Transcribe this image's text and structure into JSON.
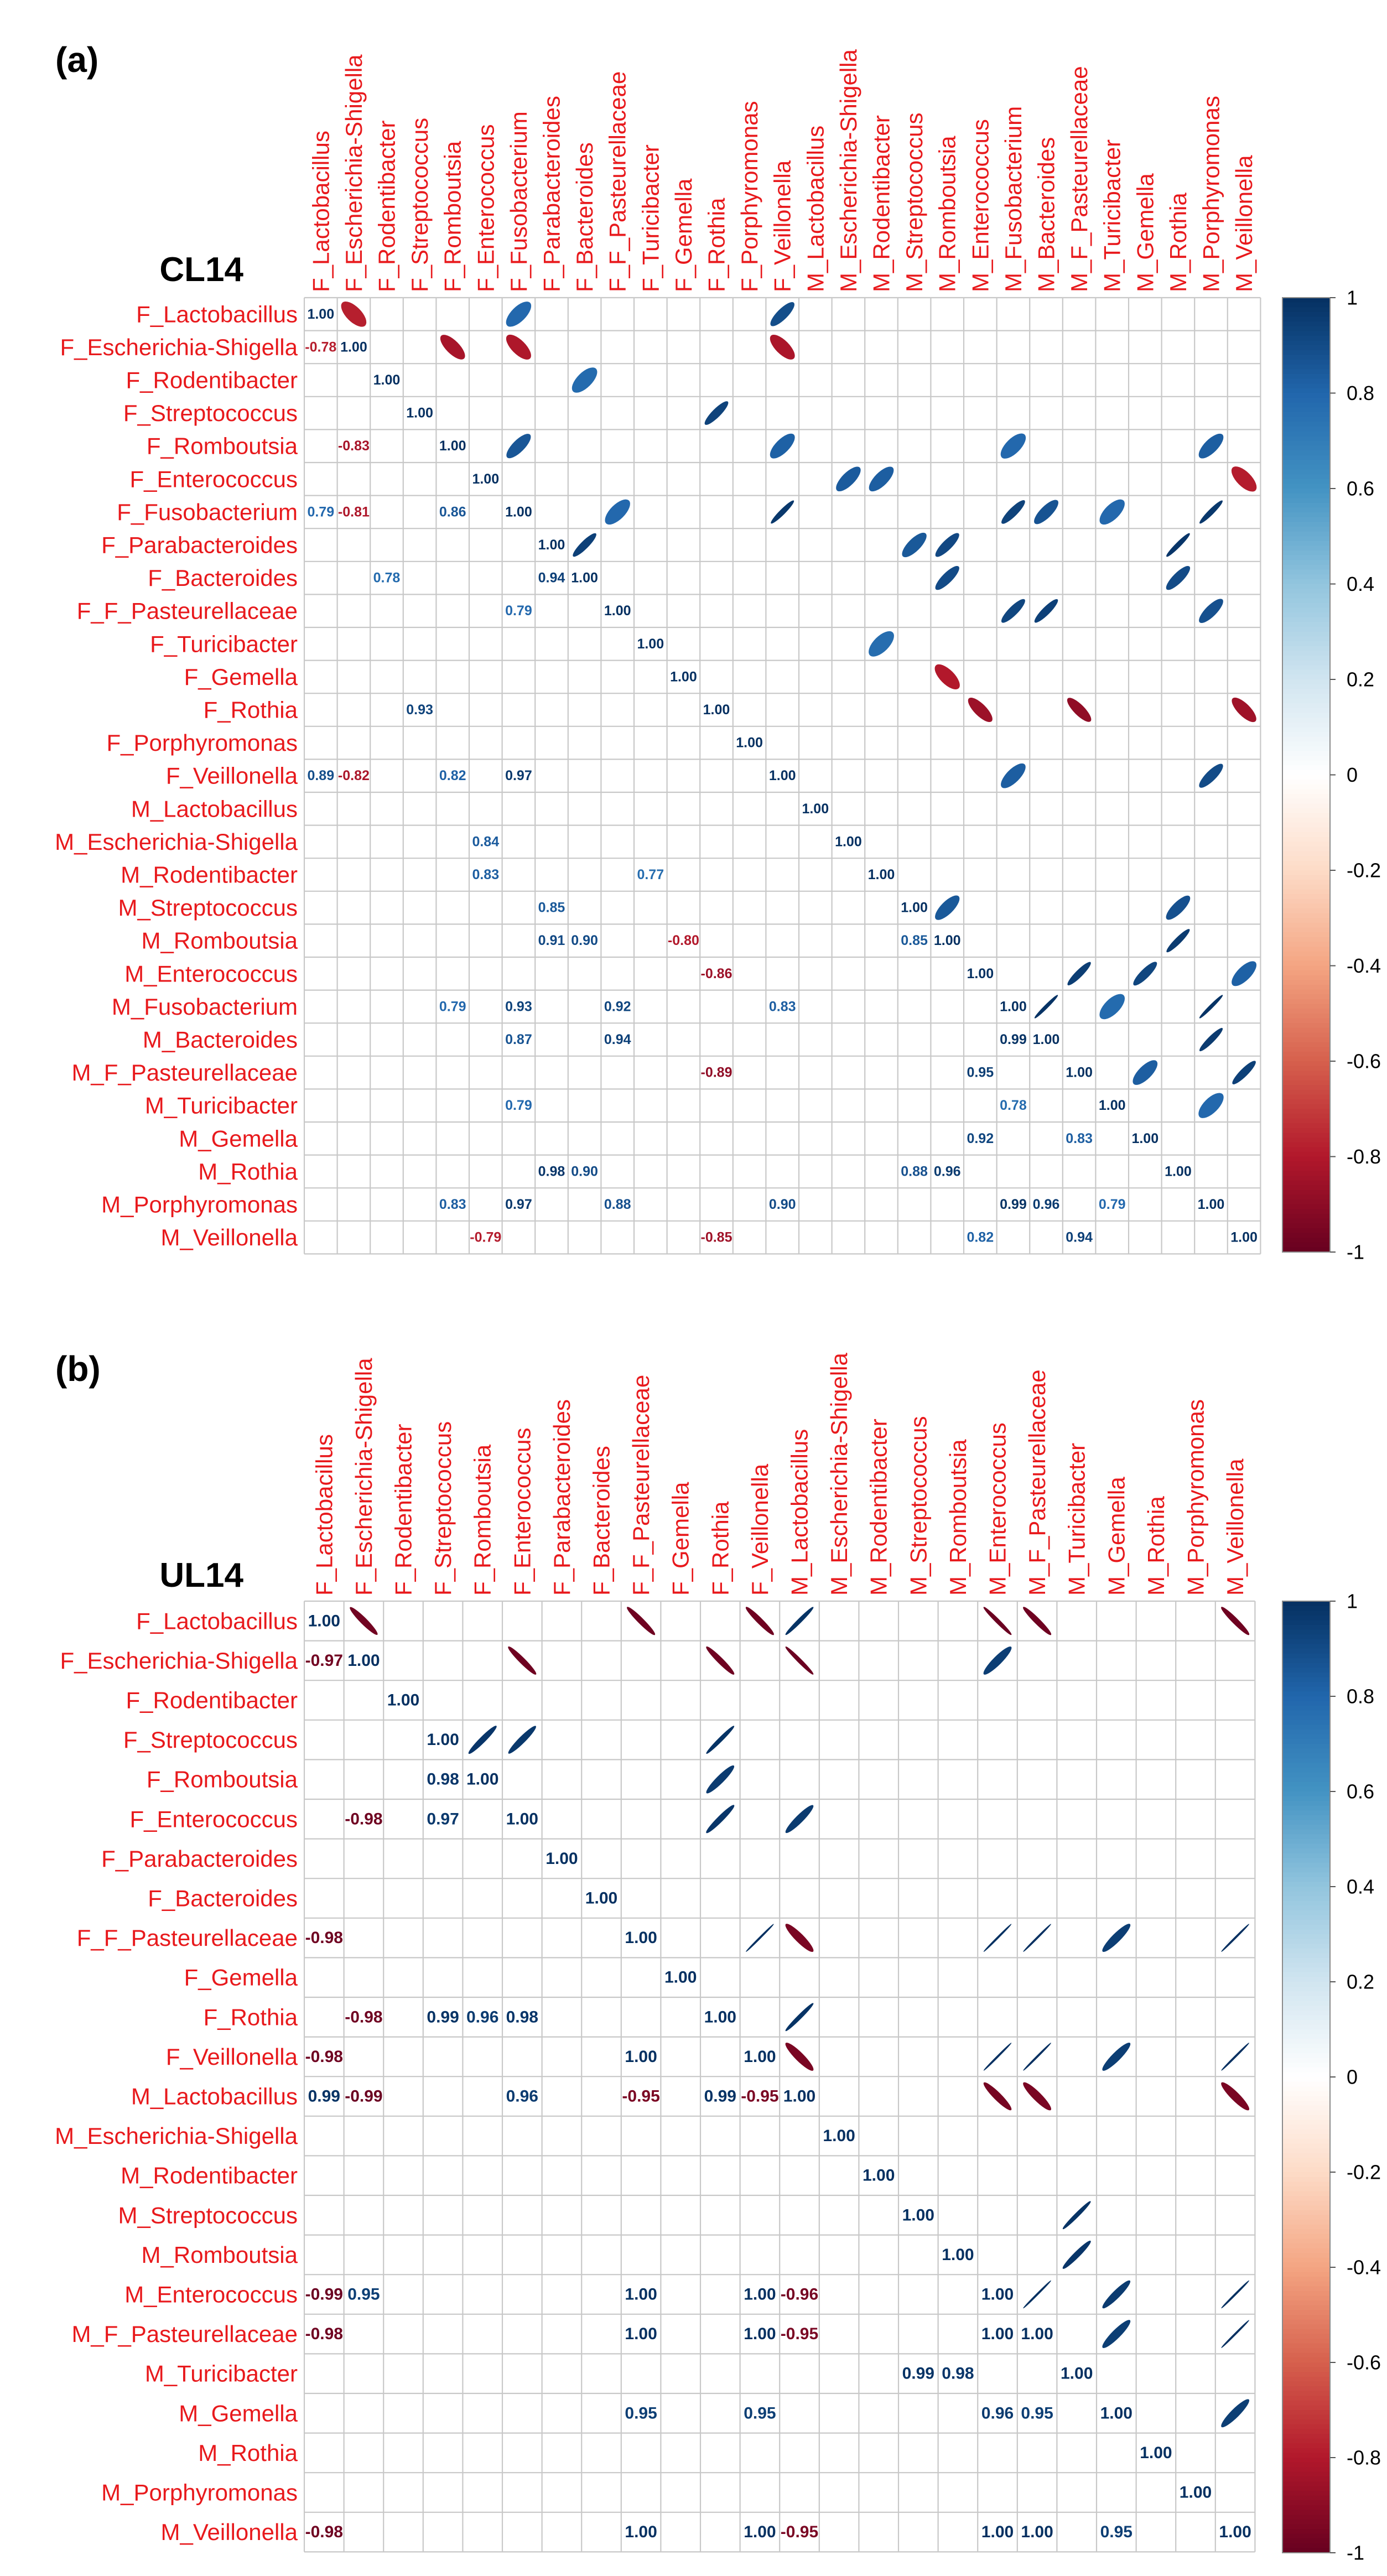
{
  "colors": {
    "label": "#e8191c",
    "grid": "#c8c8c8",
    "strong_negative": "#670020",
    "neutral": "#ffffff",
    "strong_positive": "#053061",
    "text": "#000000"
  },
  "chart_data": [
    {
      "type": "heatmap",
      "panel_label": "(a)",
      "title": "CL14",
      "value_range": [
        -1,
        1
      ],
      "legend_ticks": [
        "1",
        "0.8",
        "0.6",
        "0.4",
        "0.2",
        "0",
        "-0.2",
        "-0.4",
        "-0.6",
        "-0.8",
        "-1"
      ],
      "variables": [
        "F_Lactobacillus",
        "F_Escherichia-Shigella",
        "F_Rodentibacter",
        "F_Streptococcus",
        "F_Romboutsia",
        "F_Enterococcus",
        "F_Fusobacterium",
        "F_Parabacteroides",
        "F_Bacteroides",
        "F_F_Pasteurellaceae",
        "F_Turicibacter",
        "F_Gemella",
        "F_Rothia",
        "F_Porphyromonas",
        "F_Veillonella",
        "M_Lactobacillus",
        "M_Escherichia-Shigella",
        "M_Rodentibacter",
        "M_Streptococcus",
        "M_Romboutsia",
        "M_Enterococcus",
        "M_Fusobacterium",
        "M_Bacteroides",
        "M_F_Pasteurellaceae",
        "M_Turicibacter",
        "M_Gemella",
        "M_Rothia",
        "M_Porphyromonas",
        "M_Veillonella"
      ],
      "cells": [
        {
          "row": 0,
          "col": 0,
          "value": 1.0,
          "label": "1.00"
        },
        {
          "row": 1,
          "col": 1,
          "value": 1.0,
          "label": "1.00"
        },
        {
          "row": 2,
          "col": 2,
          "value": 1.0,
          "label": "1.00"
        },
        {
          "row": 3,
          "col": 3,
          "value": 1.0,
          "label": "1.00"
        },
        {
          "row": 4,
          "col": 4,
          "value": 1.0,
          "label": "1.00"
        },
        {
          "row": 5,
          "col": 5,
          "value": 1.0,
          "label": "1.00"
        },
        {
          "row": 6,
          "col": 6,
          "value": 1.0,
          "label": "1.00"
        },
        {
          "row": 7,
          "col": 7,
          "value": 1.0,
          "label": "1.00"
        },
        {
          "row": 8,
          "col": 8,
          "value": 1.0,
          "label": "1.00"
        },
        {
          "row": 9,
          "col": 9,
          "value": 1.0,
          "label": "1.00"
        },
        {
          "row": 10,
          "col": 10,
          "value": 1.0,
          "label": "1.00"
        },
        {
          "row": 11,
          "col": 11,
          "value": 1.0,
          "label": "1.00"
        },
        {
          "row": 12,
          "col": 12,
          "value": 1.0,
          "label": "1.00"
        },
        {
          "row": 13,
          "col": 13,
          "value": 1.0,
          "label": "1.00"
        },
        {
          "row": 14,
          "col": 14,
          "value": 1.0,
          "label": "1.00"
        },
        {
          "row": 15,
          "col": 15,
          "value": 1.0,
          "label": "1.00"
        },
        {
          "row": 16,
          "col": 16,
          "value": 1.0,
          "label": "1.00"
        },
        {
          "row": 17,
          "col": 17,
          "value": 1.0,
          "label": "1.00"
        },
        {
          "row": 18,
          "col": 18,
          "value": 1.0,
          "label": "1.00"
        },
        {
          "row": 19,
          "col": 19,
          "value": 1.0,
          "label": "1.00"
        },
        {
          "row": 20,
          "col": 20,
          "value": 1.0,
          "label": "1.00"
        },
        {
          "row": 21,
          "col": 21,
          "value": 1.0,
          "label": "1.00"
        },
        {
          "row": 22,
          "col": 22,
          "value": 1.0,
          "label": "1.00"
        },
        {
          "row": 23,
          "col": 23,
          "value": 1.0,
          "label": "1.00"
        },
        {
          "row": 24,
          "col": 24,
          "value": 1.0,
          "label": "1.00"
        },
        {
          "row": 25,
          "col": 25,
          "value": 1.0,
          "label": "1.00"
        },
        {
          "row": 26,
          "col": 26,
          "value": 1.0,
          "label": "1.00"
        },
        {
          "row": 27,
          "col": 27,
          "value": 1.0,
          "label": "1.00"
        },
        {
          "row": 28,
          "col": 28,
          "value": 1.0,
          "label": "1.00"
        },
        {
          "row": 1,
          "col": 0,
          "value": -0.78,
          "label": "-0.78"
        },
        {
          "row": 4,
          "col": 1,
          "value": -0.83,
          "label": "-0.83"
        },
        {
          "row": 6,
          "col": 0,
          "value": 0.79,
          "label": "0.79"
        },
        {
          "row": 6,
          "col": 1,
          "value": -0.81,
          "label": "-0.81"
        },
        {
          "row": 6,
          "col": 4,
          "value": 0.86,
          "label": "0.86"
        },
        {
          "row": 8,
          "col": 2,
          "value": 0.78,
          "label": "0.78"
        },
        {
          "row": 8,
          "col": 7,
          "value": 0.94,
          "label": "0.94"
        },
        {
          "row": 9,
          "col": 6,
          "value": 0.79,
          "label": "0.79"
        },
        {
          "row": 12,
          "col": 3,
          "value": 0.93,
          "label": "0.93"
        },
        {
          "row": 14,
          "col": 0,
          "value": 0.89,
          "label": "0.89"
        },
        {
          "row": 14,
          "col": 1,
          "value": -0.82,
          "label": "-0.82"
        },
        {
          "row": 14,
          "col": 4,
          "value": 0.82,
          "label": "0.82"
        },
        {
          "row": 14,
          "col": 6,
          "value": 0.97,
          "label": "0.97"
        },
        {
          "row": 16,
          "col": 5,
          "value": 0.84,
          "label": "0.84"
        },
        {
          "row": 17,
          "col": 5,
          "value": 0.83,
          "label": "0.83"
        },
        {
          "row": 17,
          "col": 10,
          "value": 0.77,
          "label": "0.77"
        },
        {
          "row": 18,
          "col": 7,
          "value": 0.85,
          "label": "0.85"
        },
        {
          "row": 19,
          "col": 7,
          "value": 0.91,
          "label": "0.91"
        },
        {
          "row": 19,
          "col": 8,
          "value": 0.9,
          "label": "0.90"
        },
        {
          "row": 19,
          "col": 11,
          "value": -0.8,
          "label": "-0.80"
        },
        {
          "row": 19,
          "col": 18,
          "value": 0.85,
          "label": "0.85"
        },
        {
          "row": 20,
          "col": 12,
          "value": -0.86,
          "label": "-0.86"
        },
        {
          "row": 21,
          "col": 4,
          "value": 0.79,
          "label": "0.79"
        },
        {
          "row": 21,
          "col": 6,
          "value": 0.93,
          "label": "0.93"
        },
        {
          "row": 21,
          "col": 9,
          "value": 0.92,
          "label": "0.92"
        },
        {
          "row": 21,
          "col": 14,
          "value": 0.83,
          "label": "0.83"
        },
        {
          "row": 22,
          "col": 6,
          "value": 0.87,
          "label": "0.87"
        },
        {
          "row": 22,
          "col": 9,
          "value": 0.94,
          "label": "0.94"
        },
        {
          "row": 22,
          "col": 21,
          "value": 0.99,
          "label": "0.99"
        },
        {
          "row": 23,
          "col": 12,
          "value": -0.89,
          "label": "-0.89"
        },
        {
          "row": 23,
          "col": 20,
          "value": 0.95,
          "label": "0.95"
        },
        {
          "row": 24,
          "col": 6,
          "value": 0.79,
          "label": "0.79"
        },
        {
          "row": 24,
          "col": 21,
          "value": 0.78,
          "label": "0.78"
        },
        {
          "row": 25,
          "col": 20,
          "value": 0.92,
          "label": "0.92"
        },
        {
          "row": 25,
          "col": 23,
          "value": 0.83,
          "label": "0.83"
        },
        {
          "row": 26,
          "col": 7,
          "value": 0.98,
          "label": "0.98"
        },
        {
          "row": 26,
          "col": 8,
          "value": 0.9,
          "label": "0.90"
        },
        {
          "row": 26,
          "col": 18,
          "value": 0.88,
          "label": "0.88"
        },
        {
          "row": 26,
          "col": 19,
          "value": 0.96,
          "label": "0.96"
        },
        {
          "row": 27,
          "col": 4,
          "value": 0.83,
          "label": "0.83"
        },
        {
          "row": 27,
          "col": 6,
          "value": 0.97,
          "label": "0.97"
        },
        {
          "row": 27,
          "col": 9,
          "value": 0.88,
          "label": "0.88"
        },
        {
          "row": 27,
          "col": 14,
          "value": 0.9,
          "label": "0.90"
        },
        {
          "row": 27,
          "col": 21,
          "value": 0.99,
          "label": "0.99"
        },
        {
          "row": 27,
          "col": 22,
          "value": 0.96,
          "label": "0.96"
        },
        {
          "row": 27,
          "col": 24,
          "value": 0.79,
          "label": "0.79"
        },
        {
          "row": 28,
          "col": 5,
          "value": -0.79,
          "label": "-0.79"
        },
        {
          "row": 28,
          "col": 12,
          "value": -0.85,
          "label": "-0.85"
        },
        {
          "row": 28,
          "col": 20,
          "value": 0.82,
          "label": "0.82"
        },
        {
          "row": 28,
          "col": 23,
          "value": 0.94,
          "label": "0.94"
        }
      ]
    },
    {
      "type": "heatmap",
      "panel_label": "(b)",
      "title": "UL14",
      "value_range": [
        -1,
        1
      ],
      "legend_ticks": [
        "1",
        "0.8",
        "0.6",
        "0.4",
        "0.2",
        "0",
        "-0.2",
        "-0.4",
        "-0.6",
        "-0.8",
        "-1"
      ],
      "variables": [
        "F_Lactobacillus",
        "F_Escherichia-Shigella",
        "F_Rodentibacter",
        "F_Streptococcus",
        "F_Romboutsia",
        "F_Enterococcus",
        "F_Parabacteroides",
        "F_Bacteroides",
        "F_F_Pasteurellaceae",
        "F_Gemella",
        "F_Rothia",
        "F_Veillonella",
        "M_Lactobacillus",
        "M_Escherichia-Shigella",
        "M_Rodentibacter",
        "M_Streptococcus",
        "M_Romboutsia",
        "M_Enterococcus",
        "M_F_Pasteurellaceae",
        "M_Turicibacter",
        "M_Gemella",
        "M_Rothia",
        "M_Porphyromonas",
        "M_Veillonella"
      ],
      "cells": [
        {
          "row": 0,
          "col": 0,
          "value": 1.0,
          "label": "1.00"
        },
        {
          "row": 1,
          "col": 1,
          "value": 1.0,
          "label": "1.00"
        },
        {
          "row": 2,
          "col": 2,
          "value": 1.0,
          "label": "1.00"
        },
        {
          "row": 3,
          "col": 3,
          "value": 1.0,
          "label": "1.00"
        },
        {
          "row": 4,
          "col": 4,
          "value": 1.0,
          "label": "1.00"
        },
        {
          "row": 5,
          "col": 5,
          "value": 1.0,
          "label": "1.00"
        },
        {
          "row": 6,
          "col": 6,
          "value": 1.0,
          "label": "1.00"
        },
        {
          "row": 7,
          "col": 7,
          "value": 1.0,
          "label": "1.00"
        },
        {
          "row": 8,
          "col": 8,
          "value": 1.0,
          "label": "1.00"
        },
        {
          "row": 9,
          "col": 9,
          "value": 1.0,
          "label": "1.00"
        },
        {
          "row": 10,
          "col": 10,
          "value": 1.0,
          "label": "1.00"
        },
        {
          "row": 11,
          "col": 11,
          "value": 1.0,
          "label": "1.00"
        },
        {
          "row": 12,
          "col": 12,
          "value": 1.0,
          "label": "1.00"
        },
        {
          "row": 13,
          "col": 13,
          "value": 1.0,
          "label": "1.00"
        },
        {
          "row": 14,
          "col": 14,
          "value": 1.0,
          "label": "1.00"
        },
        {
          "row": 15,
          "col": 15,
          "value": 1.0,
          "label": "1.00"
        },
        {
          "row": 16,
          "col": 16,
          "value": 1.0,
          "label": "1.00"
        },
        {
          "row": 17,
          "col": 17,
          "value": 1.0,
          "label": "1.00"
        },
        {
          "row": 18,
          "col": 18,
          "value": 1.0,
          "label": "1.00"
        },
        {
          "row": 19,
          "col": 19,
          "value": 1.0,
          "label": "1.00"
        },
        {
          "row": 20,
          "col": 20,
          "value": 1.0,
          "label": "1.00"
        },
        {
          "row": 21,
          "col": 21,
          "value": 1.0,
          "label": "1.00"
        },
        {
          "row": 22,
          "col": 22,
          "value": 1.0,
          "label": "1.00"
        },
        {
          "row": 23,
          "col": 23,
          "value": 1.0,
          "label": "1.00"
        },
        {
          "row": 1,
          "col": 0,
          "value": -0.97,
          "label": "-0.97"
        },
        {
          "row": 4,
          "col": 3,
          "value": 0.98,
          "label": "0.98"
        },
        {
          "row": 5,
          "col": 1,
          "value": -0.98,
          "label": "-0.98"
        },
        {
          "row": 5,
          "col": 3,
          "value": 0.97,
          "label": "0.97"
        },
        {
          "row": 8,
          "col": 0,
          "value": -0.98,
          "label": "-0.98"
        },
        {
          "row": 10,
          "col": 1,
          "value": -0.98,
          "label": "-0.98"
        },
        {
          "row": 10,
          "col": 3,
          "value": 0.99,
          "label": "0.99"
        },
        {
          "row": 10,
          "col": 4,
          "value": 0.96,
          "label": "0.96"
        },
        {
          "row": 10,
          "col": 5,
          "value": 0.98,
          "label": "0.98"
        },
        {
          "row": 11,
          "col": 0,
          "value": -0.98,
          "label": "-0.98"
        },
        {
          "row": 11,
          "col": 8,
          "value": 1.0,
          "label": "1.00"
        },
        {
          "row": 12,
          "col": 0,
          "value": 0.99,
          "label": "0.99"
        },
        {
          "row": 12,
          "col": 1,
          "value": -0.99,
          "label": "-0.99"
        },
        {
          "row": 12,
          "col": 5,
          "value": 0.96,
          "label": "0.96"
        },
        {
          "row": 12,
          "col": 8,
          "value": -0.95,
          "label": "-0.95"
        },
        {
          "row": 12,
          "col": 10,
          "value": 0.99,
          "label": "0.99"
        },
        {
          "row": 12,
          "col": 11,
          "value": -0.95,
          "label": "-0.95"
        },
        {
          "row": 17,
          "col": 0,
          "value": -0.99,
          "label": "-0.99"
        },
        {
          "row": 17,
          "col": 1,
          "value": 0.95,
          "label": "0.95"
        },
        {
          "row": 17,
          "col": 8,
          "value": 1.0,
          "label": "1.00"
        },
        {
          "row": 17,
          "col": 11,
          "value": 1.0,
          "label": "1.00"
        },
        {
          "row": 17,
          "col": 12,
          "value": -0.96,
          "label": "-0.96"
        },
        {
          "row": 18,
          "col": 0,
          "value": -0.98,
          "label": "-0.98"
        },
        {
          "row": 18,
          "col": 8,
          "value": 1.0,
          "label": "1.00"
        },
        {
          "row": 18,
          "col": 11,
          "value": 1.0,
          "label": "1.00"
        },
        {
          "row": 18,
          "col": 12,
          "value": -0.95,
          "label": "-0.95"
        },
        {
          "row": 18,
          "col": 17,
          "value": 1.0,
          "label": "1.00"
        },
        {
          "row": 19,
          "col": 15,
          "value": 0.99,
          "label": "0.99"
        },
        {
          "row": 19,
          "col": 16,
          "value": 0.98,
          "label": "0.98"
        },
        {
          "row": 20,
          "col": 8,
          "value": 0.95,
          "label": "0.95"
        },
        {
          "row": 20,
          "col": 11,
          "value": 0.95,
          "label": "0.95"
        },
        {
          "row": 20,
          "col": 17,
          "value": 0.96,
          "label": "0.96"
        },
        {
          "row": 20,
          "col": 18,
          "value": 0.95,
          "label": "0.95"
        },
        {
          "row": 23,
          "col": 0,
          "value": -0.98,
          "label": "-0.98"
        },
        {
          "row": 23,
          "col": 8,
          "value": 1.0,
          "label": "1.00"
        },
        {
          "row": 23,
          "col": 11,
          "value": 1.0,
          "label": "1.00"
        },
        {
          "row": 23,
          "col": 12,
          "value": -0.95,
          "label": "-0.95"
        },
        {
          "row": 23,
          "col": 17,
          "value": 1.0,
          "label": "1.00"
        },
        {
          "row": 23,
          "col": 18,
          "value": 1.0,
          "label": "1.00"
        },
        {
          "row": 23,
          "col": 20,
          "value": 0.95,
          "label": "0.95"
        }
      ]
    }
  ]
}
